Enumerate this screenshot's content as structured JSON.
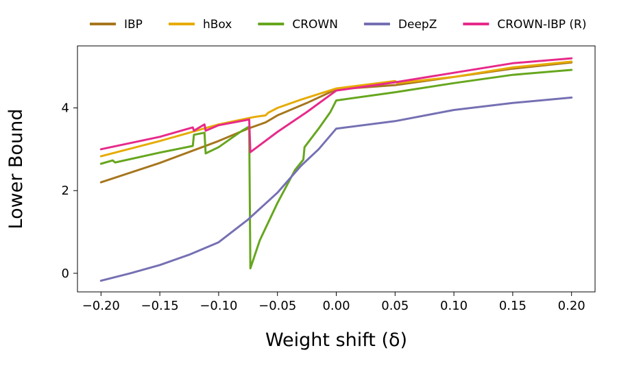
{
  "chart_data": {
    "type": "line",
    "title": "",
    "xlabel": "Weight shift (δ)",
    "ylabel": "Lower Bound",
    "xlim": [
      -0.22,
      0.22
    ],
    "ylim": [
      -0.45,
      5.5
    ],
    "xticks": [
      -0.2,
      -0.15,
      -0.1,
      -0.05,
      0.0,
      0.05,
      0.1,
      0.15,
      0.2
    ],
    "xtick_labels": [
      "−0.20",
      "−0.15",
      "−0.10",
      "−0.05",
      "0.00",
      "0.05",
      "0.10",
      "0.15",
      "0.20"
    ],
    "yticks": [
      0,
      2,
      4
    ],
    "ytick_labels": [
      "0",
      "2",
      "4"
    ],
    "grid": false,
    "legend_position": "top",
    "series": [
      {
        "name": "IBP",
        "color": "#a6761d",
        "points": [
          [
            -0.2,
            2.2
          ],
          [
            -0.15,
            2.67
          ],
          [
            -0.1,
            3.2
          ],
          [
            -0.075,
            3.5
          ],
          [
            -0.06,
            3.65
          ],
          [
            -0.05,
            3.82
          ],
          [
            -0.025,
            4.12
          ],
          [
            0.0,
            4.45
          ],
          [
            0.05,
            4.55
          ],
          [
            0.1,
            4.75
          ],
          [
            0.15,
            4.95
          ],
          [
            0.2,
            5.1
          ]
        ]
      },
      {
        "name": "hBox",
        "color": "#e6ab02",
        "points": [
          [
            -0.2,
            2.83
          ],
          [
            -0.15,
            3.2
          ],
          [
            -0.1,
            3.6
          ],
          [
            -0.075,
            3.75
          ],
          [
            -0.07,
            3.78
          ],
          [
            -0.06,
            3.82
          ],
          [
            -0.058,
            3.88
          ],
          [
            -0.05,
            4.0
          ],
          [
            -0.03,
            4.2
          ],
          [
            0.0,
            4.47
          ],
          [
            0.05,
            4.65
          ],
          [
            0.052,
            4.6
          ],
          [
            0.1,
            4.75
          ],
          [
            0.15,
            4.98
          ],
          [
            0.2,
            5.12
          ]
        ]
      },
      {
        "name": "CROWN",
        "color": "#66a61e",
        "points": [
          [
            -0.2,
            2.65
          ],
          [
            -0.19,
            2.73
          ],
          [
            -0.188,
            2.68
          ],
          [
            -0.15,
            2.92
          ],
          [
            -0.122,
            3.08
          ],
          [
            -0.121,
            3.35
          ],
          [
            -0.112,
            3.4
          ],
          [
            -0.111,
            2.9
          ],
          [
            -0.1,
            3.05
          ],
          [
            -0.08,
            3.45
          ],
          [
            -0.074,
            3.55
          ],
          [
            -0.073,
            0.12
          ],
          [
            -0.065,
            0.8
          ],
          [
            -0.05,
            1.7
          ],
          [
            -0.035,
            2.5
          ],
          [
            -0.028,
            2.75
          ],
          [
            -0.027,
            3.05
          ],
          [
            -0.015,
            3.5
          ],
          [
            -0.005,
            3.9
          ],
          [
            0.0,
            4.18
          ],
          [
            0.05,
            4.38
          ],
          [
            0.1,
            4.6
          ],
          [
            0.15,
            4.8
          ],
          [
            0.2,
            4.92
          ]
        ]
      },
      {
        "name": "DeepZ",
        "color": "#7570b3",
        "points": [
          [
            -0.2,
            -0.18
          ],
          [
            -0.175,
            0.0
          ],
          [
            -0.15,
            0.2
          ],
          [
            -0.125,
            0.45
          ],
          [
            -0.1,
            0.75
          ],
          [
            -0.075,
            1.3
          ],
          [
            -0.05,
            1.95
          ],
          [
            -0.03,
            2.6
          ],
          [
            -0.015,
            3.0
          ],
          [
            0.0,
            3.5
          ],
          [
            0.05,
            3.68
          ],
          [
            0.1,
            3.95
          ],
          [
            0.15,
            4.12
          ],
          [
            0.2,
            4.25
          ]
        ]
      },
      {
        "name": "CROWN-IBP (R)",
        "color": "#e7298a",
        "points": [
          [
            -0.2,
            3.0
          ],
          [
            -0.15,
            3.3
          ],
          [
            -0.122,
            3.53
          ],
          [
            -0.121,
            3.45
          ],
          [
            -0.112,
            3.6
          ],
          [
            -0.111,
            3.45
          ],
          [
            -0.1,
            3.58
          ],
          [
            -0.074,
            3.72
          ],
          [
            -0.073,
            2.93
          ],
          [
            -0.05,
            3.42
          ],
          [
            -0.025,
            3.9
          ],
          [
            0.0,
            4.42
          ],
          [
            0.05,
            4.62
          ],
          [
            0.1,
            4.85
          ],
          [
            0.15,
            5.08
          ],
          [
            0.2,
            5.2
          ]
        ]
      }
    ]
  }
}
